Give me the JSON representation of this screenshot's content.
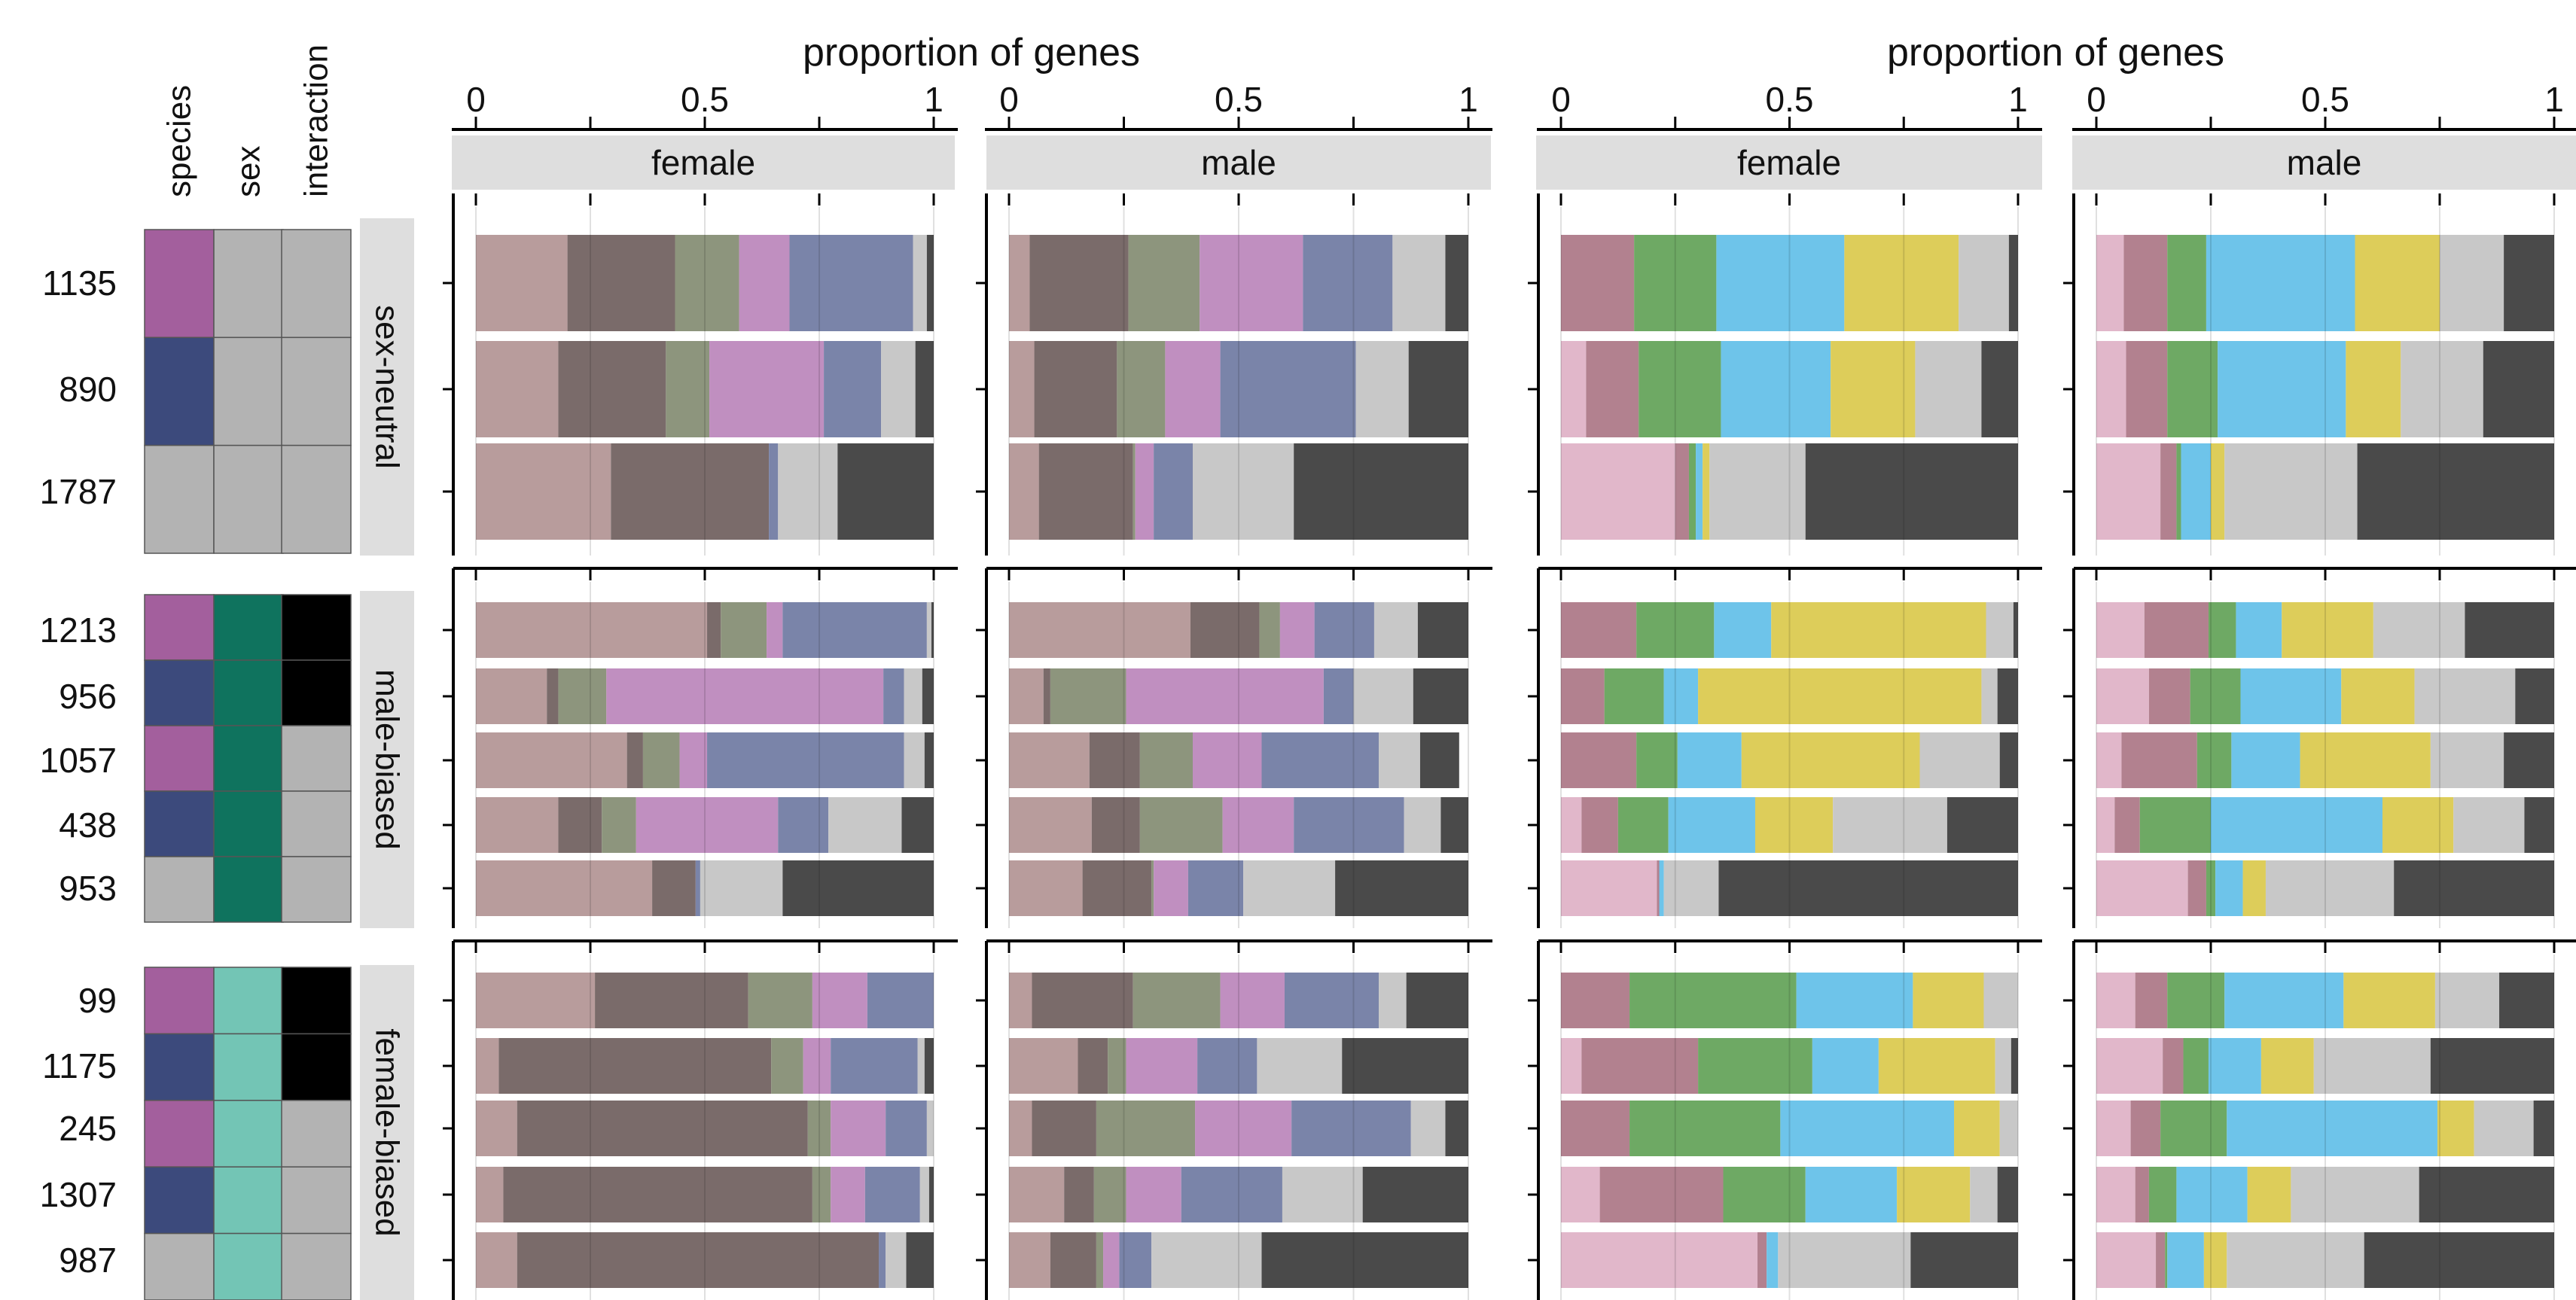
{
  "colors": {
    "species": "#A35F9D",
    "sex": "#3C4A7C",
    "neither": "#B3B3B3",
    "sex_male": "#0F735E",
    "sex_female": "#73C5B5",
    "interaction_yes": "#000000",
    "strip": "#DEDEDE",
    "panel_a_categories": [
      "#B89C9C",
      "#7A6B6A",
      "#8D957D",
      "#C08FC0",
      "#7A84A9",
      "#C8C8C8",
      "#4A4A4A"
    ],
    "panel_b_categories": [
      "#E1B7CA",
      "#B2818F",
      "#6EA964",
      "#6EC4EA",
      "#DDCD5A",
      "#C8C8C8",
      "#4A4A4A"
    ]
  },
  "annotation": {
    "column_headers": [
      "species",
      "sex",
      "interaction"
    ],
    "rows": [
      {
        "count": "1135",
        "species": "species",
        "sex": "neither",
        "interaction": "no"
      },
      {
        "count": "890",
        "species": "sex",
        "sex": "neither",
        "interaction": "no"
      },
      {
        "count": "1787",
        "species": "neither",
        "sex": "neither",
        "interaction": "no"
      },
      {
        "count": "1213",
        "species": "species",
        "sex": "male",
        "interaction": "yes"
      },
      {
        "count": "956",
        "species": "sex",
        "sex": "male",
        "interaction": "yes"
      },
      {
        "count": "1057",
        "species": "species",
        "sex": "male",
        "interaction": "no"
      },
      {
        "count": "438",
        "species": "sex",
        "sex": "male",
        "interaction": "no"
      },
      {
        "count": "953",
        "species": "neither",
        "sex": "male",
        "interaction": "no"
      },
      {
        "count": "99",
        "species": "species",
        "sex": "female",
        "interaction": "yes"
      },
      {
        "count": "1175",
        "species": "sex",
        "sex": "female",
        "interaction": "yes"
      },
      {
        "count": "245",
        "species": "species",
        "sex": "female",
        "interaction": "no"
      },
      {
        "count": "1307",
        "species": "sex",
        "sex": "female",
        "interaction": "no"
      },
      {
        "count": "987",
        "species": "neither",
        "sex": "female",
        "interaction": "no"
      }
    ]
  },
  "row_groups": [
    {
      "label": "sex-neutral",
      "size": 3
    },
    {
      "label": "male-biased",
      "size": 5
    },
    {
      "label": "female-biased",
      "size": 5
    }
  ],
  "chart_data": [
    {
      "type": "bar",
      "orientation": "horizontal-stacked",
      "panel": "female",
      "xlabel": "proportion of genes",
      "xlim": [
        0,
        1
      ],
      "xticks": [
        "0",
        "0.5",
        "1"
      ],
      "palette": "panel_a_categories",
      "rows": [
        [
          0.2,
          0.235,
          0.14,
          0.11,
          0.27,
          0.03,
          0.015
        ],
        [
          0.18,
          0.235,
          0.095,
          0.25,
          0.125,
          0.075,
          0.04
        ],
        [
          0.295,
          0.345,
          0.0,
          0.0,
          0.02,
          0.13,
          0.21
        ],
        [
          0.505,
          0.03,
          0.1,
          0.035,
          0.315,
          0.01,
          0.005
        ],
        [
          0.155,
          0.025,
          0.105,
          0.605,
          0.045,
          0.04,
          0.025
        ],
        [
          0.33,
          0.035,
          0.08,
          0.06,
          0.43,
          0.045,
          0.02
        ],
        [
          0.18,
          0.095,
          0.075,
          0.31,
          0.11,
          0.16,
          0.07
        ],
        [
          0.385,
          0.095,
          0.0,
          0.0,
          0.01,
          0.18,
          0.33
        ],
        [
          0.26,
          0.335,
          0.14,
          0.12,
          0.145,
          0.0,
          0.0
        ],
        [
          0.05,
          0.595,
          0.07,
          0.06,
          0.19,
          0.015,
          0.02
        ],
        [
          0.09,
          0.635,
          0.05,
          0.12,
          0.09,
          0.015,
          0.0
        ],
        [
          0.06,
          0.675,
          0.04,
          0.075,
          0.12,
          0.02,
          0.01
        ],
        [
          0.09,
          0.79,
          0.0,
          0.0,
          0.015,
          0.045,
          0.06
        ]
      ]
    },
    {
      "type": "bar",
      "orientation": "horizontal-stacked",
      "panel": "male",
      "xlabel": "",
      "xlim": [
        0,
        1
      ],
      "xticks": [
        "0",
        "0.5",
        "1"
      ],
      "palette": "panel_a_categories",
      "rows": [
        [
          0.045,
          0.215,
          0.155,
          0.225,
          0.195,
          0.115,
          0.05
        ],
        [
          0.055,
          0.18,
          0.105,
          0.12,
          0.295,
          0.115,
          0.13
        ],
        [
          0.065,
          0.205,
          0.005,
          0.04,
          0.085,
          0.22,
          0.38
        ],
        [
          0.395,
          0.15,
          0.045,
          0.075,
          0.13,
          0.095,
          0.11
        ],
        [
          0.075,
          0.015,
          0.165,
          0.43,
          0.065,
          0.13,
          0.12
        ],
        [
          0.175,
          0.11,
          0.115,
          0.15,
          0.255,
          0.09,
          0.085
        ],
        [
          0.18,
          0.105,
          0.18,
          0.155,
          0.24,
          0.08,
          0.06
        ],
        [
          0.16,
          0.15,
          0.005,
          0.075,
          0.12,
          0.2,
          0.29
        ],
        [
          0.05,
          0.22,
          0.19,
          0.14,
          0.205,
          0.06,
          0.135
        ],
        [
          0.15,
          0.065,
          0.04,
          0.155,
          0.13,
          0.185,
          0.275
        ],
        [
          0.05,
          0.14,
          0.215,
          0.21,
          0.26,
          0.075,
          0.05
        ],
        [
          0.12,
          0.065,
          0.07,
          0.12,
          0.22,
          0.175,
          0.23
        ],
        [
          0.09,
          0.1,
          0.015,
          0.035,
          0.07,
          0.24,
          0.45
        ]
      ]
    },
    {
      "type": "bar",
      "orientation": "horizontal-stacked",
      "panel": "female",
      "xlabel": "proportion of genes",
      "xlim": [
        0,
        1
      ],
      "xticks": [
        "0",
        "0.5",
        "1"
      ],
      "palette": "panel_b_categories",
      "rows": [
        [
          0.0,
          0.16,
          0.18,
          0.28,
          0.25,
          0.11,
          0.02
        ],
        [
          0.055,
          0.115,
          0.18,
          0.24,
          0.185,
          0.145,
          0.08
        ],
        [
          0.25,
          0.03,
          0.015,
          0.015,
          0.015,
          0.21,
          0.465
        ],
        [
          0.0,
          0.165,
          0.17,
          0.125,
          0.47,
          0.06,
          0.01
        ],
        [
          0.0,
          0.095,
          0.13,
          0.075,
          0.62,
          0.035,
          0.045
        ],
        [
          0.0,
          0.165,
          0.09,
          0.14,
          0.39,
          0.175,
          0.04
        ],
        [
          0.045,
          0.08,
          0.11,
          0.19,
          0.17,
          0.25,
          0.155
        ],
        [
          0.21,
          0.005,
          0.0,
          0.01,
          0.0,
          0.12,
          0.655
        ],
        [
          0.0,
          0.15,
          0.365,
          0.255,
          0.155,
          0.075,
          0.0
        ],
        [
          0.045,
          0.255,
          0.25,
          0.145,
          0.255,
          0.035,
          0.015
        ],
        [
          0.0,
          0.15,
          0.33,
          0.38,
          0.1,
          0.04,
          0.0
        ],
        [
          0.085,
          0.27,
          0.18,
          0.2,
          0.16,
          0.06,
          0.045
        ],
        [
          0.43,
          0.02,
          0.0,
          0.025,
          0.0,
          0.29,
          0.235
        ]
      ]
    },
    {
      "type": "bar",
      "orientation": "horizontal-stacked",
      "panel": "male",
      "xlabel": "",
      "xlim": [
        0,
        1
      ],
      "xticks": [
        "0",
        "0.5",
        "1"
      ],
      "palette": "panel_b_categories",
      "rows": [
        [
          0.06,
          0.095,
          0.085,
          0.325,
          0.185,
          0.14,
          0.11
        ],
        [
          0.065,
          0.09,
          0.11,
          0.28,
          0.12,
          0.18,
          0.155
        ],
        [
          0.14,
          0.035,
          0.01,
          0.065,
          0.03,
          0.29,
          0.43
        ],
        [
          0.105,
          0.14,
          0.06,
          0.1,
          0.2,
          0.2,
          0.195
        ],
        [
          0.115,
          0.09,
          0.11,
          0.22,
          0.16,
          0.22,
          0.085
        ],
        [
          0.055,
          0.165,
          0.075,
          0.15,
          0.285,
          0.16,
          0.11
        ],
        [
          0.04,
          0.055,
          0.155,
          0.375,
          0.155,
          0.155,
          0.065
        ],
        [
          0.2,
          0.04,
          0.02,
          0.06,
          0.05,
          0.28,
          0.35
        ],
        [
          0.085,
          0.07,
          0.125,
          0.26,
          0.2,
          0.14,
          0.12
        ],
        [
          0.145,
          0.045,
          0.055,
          0.115,
          0.115,
          0.255,
          0.27
        ],
        [
          0.075,
          0.065,
          0.145,
          0.46,
          0.08,
          0.13,
          0.045
        ],
        [
          0.085,
          0.03,
          0.06,
          0.155,
          0.095,
          0.28,
          0.295
        ],
        [
          0.13,
          0.02,
          0.005,
          0.08,
          0.05,
          0.3,
          0.415
        ]
      ]
    }
  ]
}
